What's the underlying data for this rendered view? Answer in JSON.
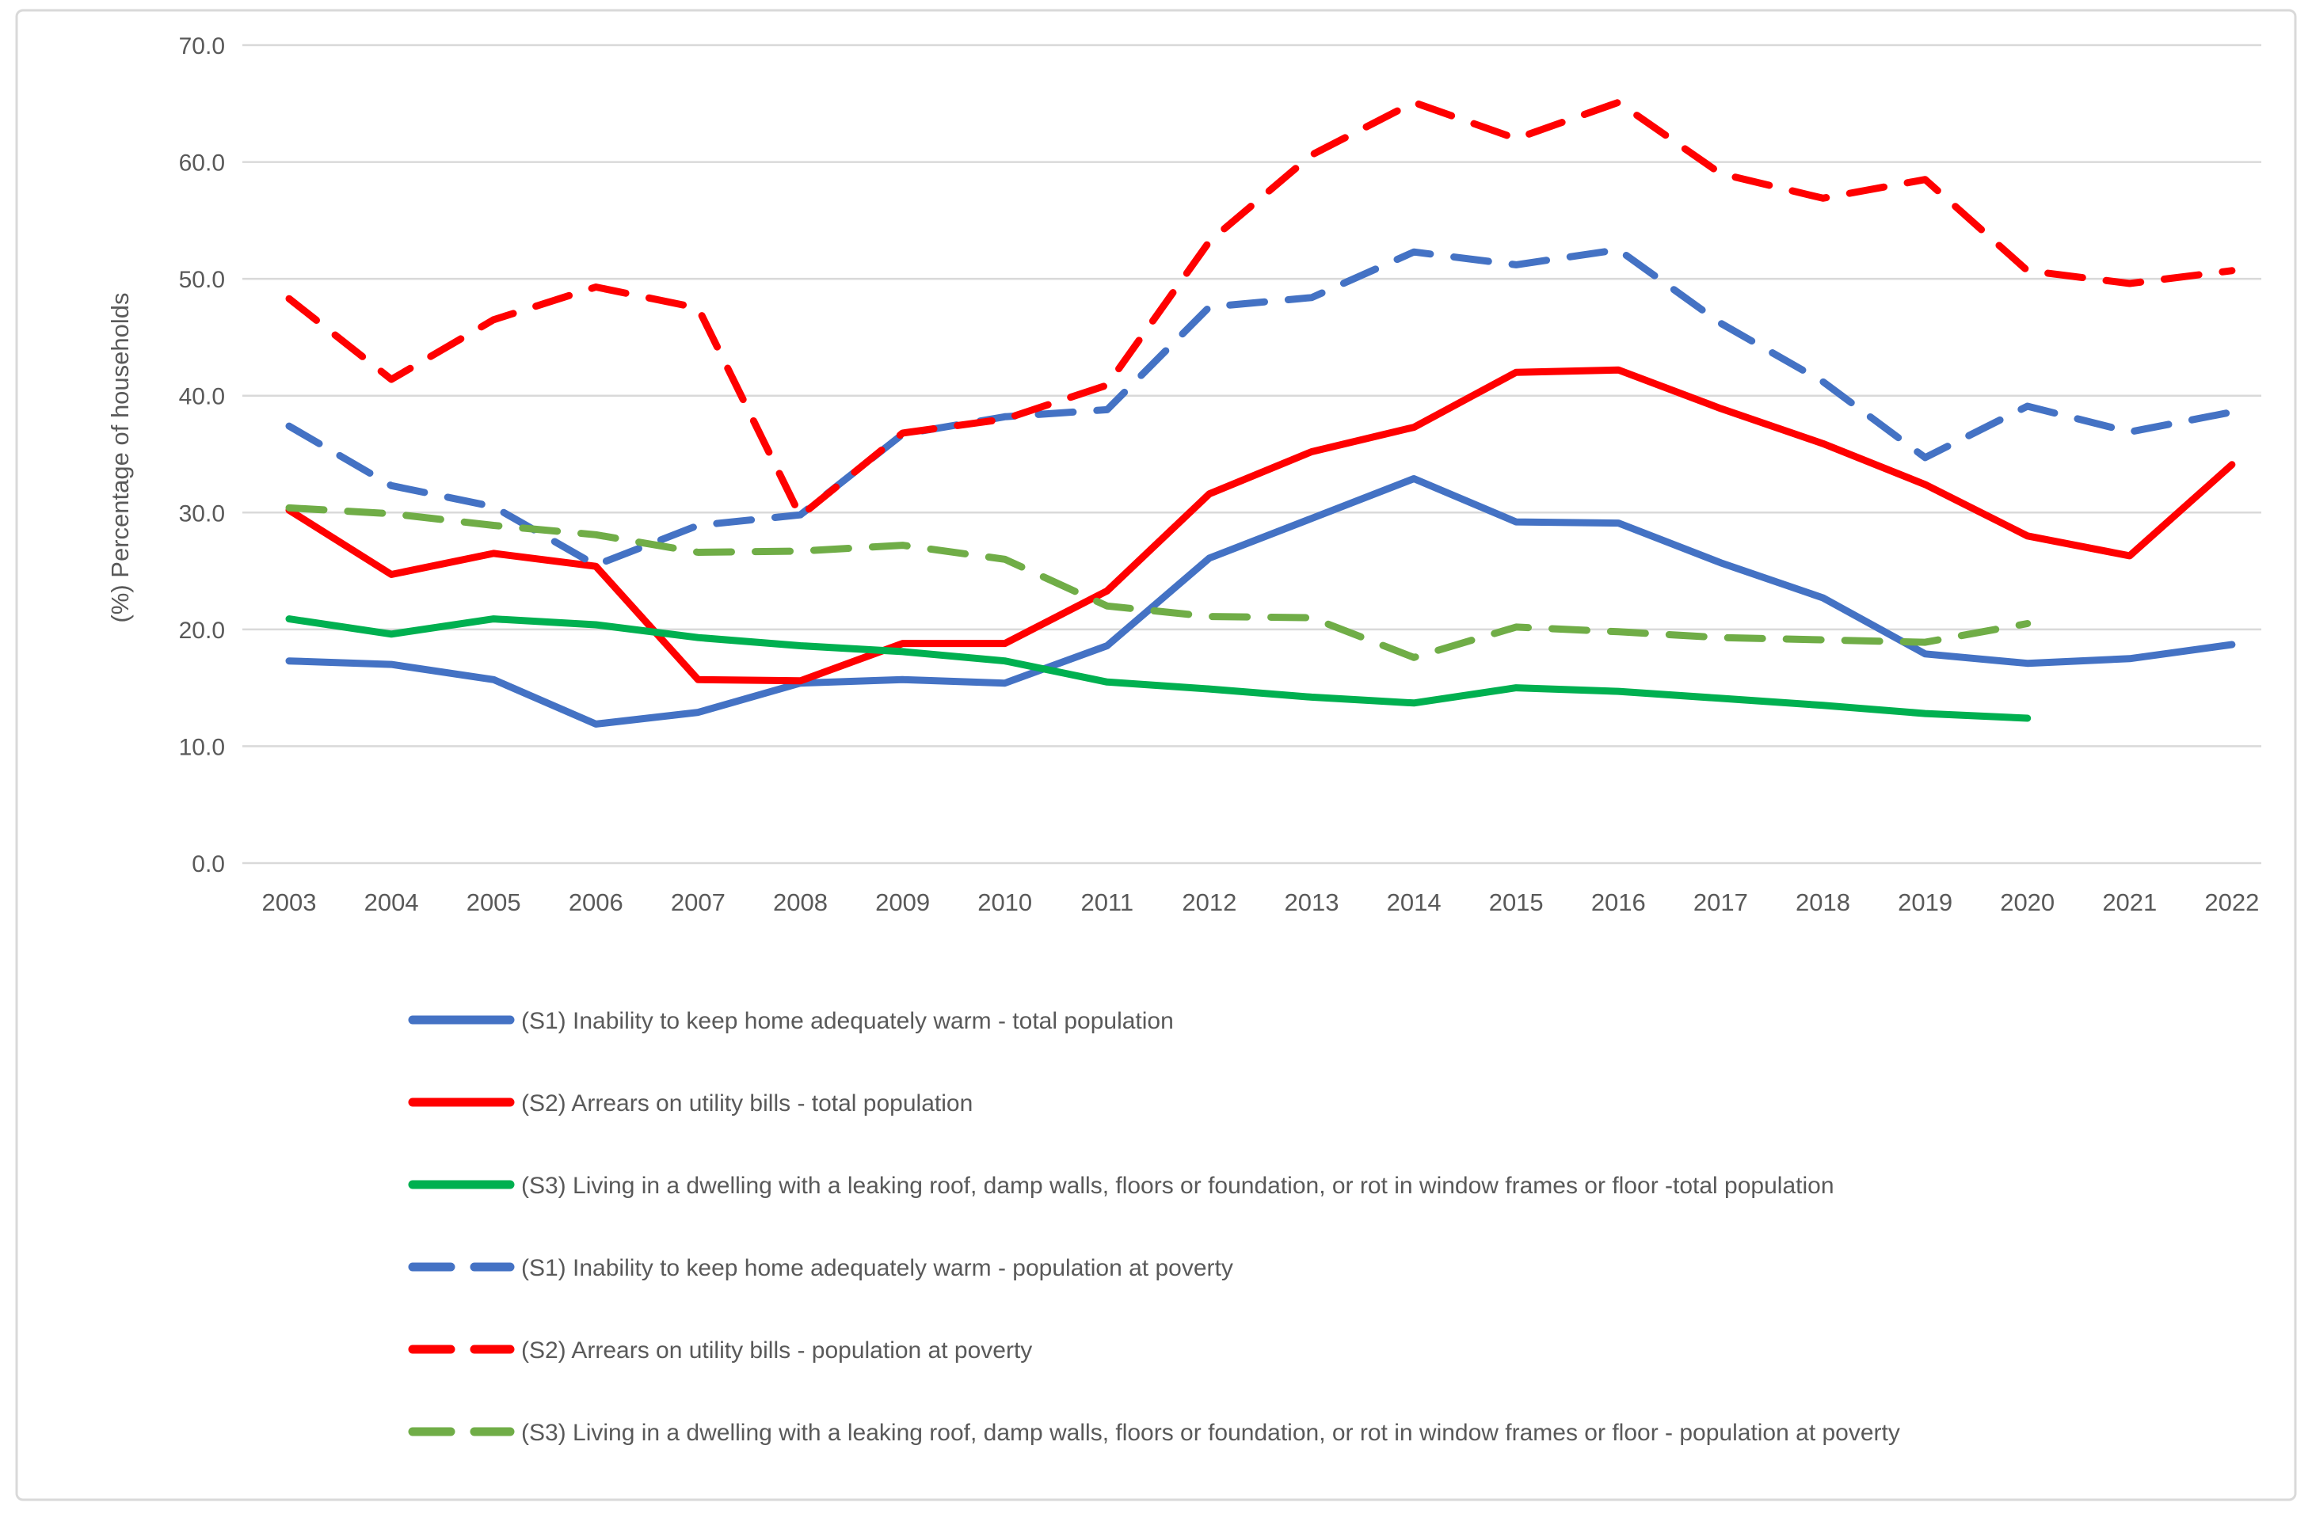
{
  "chart_data": {
    "type": "line",
    "title": "",
    "ylabel": "(%) Percentage of households",
    "xlabel": "",
    "ylim": [
      0,
      70
    ],
    "ytick_step": 10,
    "yticks": [
      "0.0",
      "10.0",
      "20.0",
      "30.0",
      "40.0",
      "50.0",
      "60.0",
      "70.0"
    ],
    "grid": "horizontal-only",
    "legend_position": "bottom-left",
    "categories": [
      "2003",
      "2004",
      "2005",
      "2006",
      "2007",
      "2008",
      "2009",
      "2010",
      "2011",
      "2012",
      "2013",
      "2014",
      "2015",
      "2016",
      "2017",
      "2018",
      "2019",
      "2020",
      "2021",
      "2022"
    ],
    "series": [
      {
        "id": "s1-total",
        "name": "(S1) Inability to keep home adequately warm - total population",
        "color": "#4472C4",
        "dash": false,
        "values": [
          17.3,
          17.0,
          15.7,
          11.9,
          12.9,
          15.4,
          15.7,
          15.4,
          18.6,
          26.1,
          29.5,
          32.9,
          29.2,
          29.1,
          25.7,
          22.7,
          17.9,
          17.1,
          17.5,
          18.7
        ]
      },
      {
        "id": "s2-total",
        "name": "(S2) Arrears on utility bills - total population",
        "color": "#FF0000",
        "dash": false,
        "values": [
          30.2,
          24.7,
          26.5,
          25.4,
          15.7,
          15.6,
          18.8,
          18.8,
          23.3,
          31.6,
          35.2,
          37.3,
          42.0,
          42.2,
          38.9,
          35.9,
          32.4,
          28.0,
          26.3,
          34.1
        ]
      },
      {
        "id": "s3-total",
        "name": "(S3) Living in a dwelling with a leaking roof, damp walls, floors or foundation, or rot in window frames or floor -total population",
        "color": "#00B050",
        "dash": false,
        "values": [
          20.9,
          19.6,
          20.9,
          20.4,
          19.3,
          18.6,
          18.1,
          17.3,
          15.5,
          14.9,
          14.2,
          13.7,
          15.0,
          14.7,
          14.1,
          13.5,
          12.8,
          12.4
        ]
      },
      {
        "id": "s1-poverty",
        "name": "(S1) Inability to keep home adequately warm -  population at poverty",
        "color": "#4472C4",
        "dash": true,
        "values": [
          37.4,
          32.3,
          30.5,
          25.5,
          28.9,
          29.8,
          36.7,
          38.2,
          38.8,
          47.6,
          48.4,
          52.3,
          51.2,
          52.5,
          46.2,
          41.2,
          34.7,
          39.1,
          36.9,
          38.6
        ]
      },
      {
        "id": "s2-poverty",
        "name": "(S2) Arrears on utility bills -  population at poverty",
        "color": "#FF0000",
        "dash": true,
        "values": [
          48.3,
          41.4,
          46.5,
          49.3,
          47.5,
          29.7,
          36.8,
          38.0,
          40.9,
          53.2,
          60.6,
          65.1,
          62.0,
          65.1,
          59.0,
          56.9,
          58.5,
          50.7,
          49.6,
          50.7
        ]
      },
      {
        "id": "s3-poverty",
        "name": "(S3) Living in a dwelling with a leaking roof, damp walls, floors or foundation, or rot in window frames or floor - population at poverty",
        "color": "#70AD47",
        "dash": true,
        "values": [
          30.4,
          29.9,
          28.9,
          28.1,
          26.6,
          26.7,
          27.2,
          26.0,
          22.0,
          21.1,
          21.0,
          17.6,
          20.2,
          19.8,
          19.3,
          19.1,
          18.9,
          20.5
        ]
      }
    ],
    "colors": {
      "gridline": "#D9D9D9",
      "axis_text": "#595959",
      "frame_border": "#D9D9D9",
      "background": "#FFFFFF"
    }
  }
}
